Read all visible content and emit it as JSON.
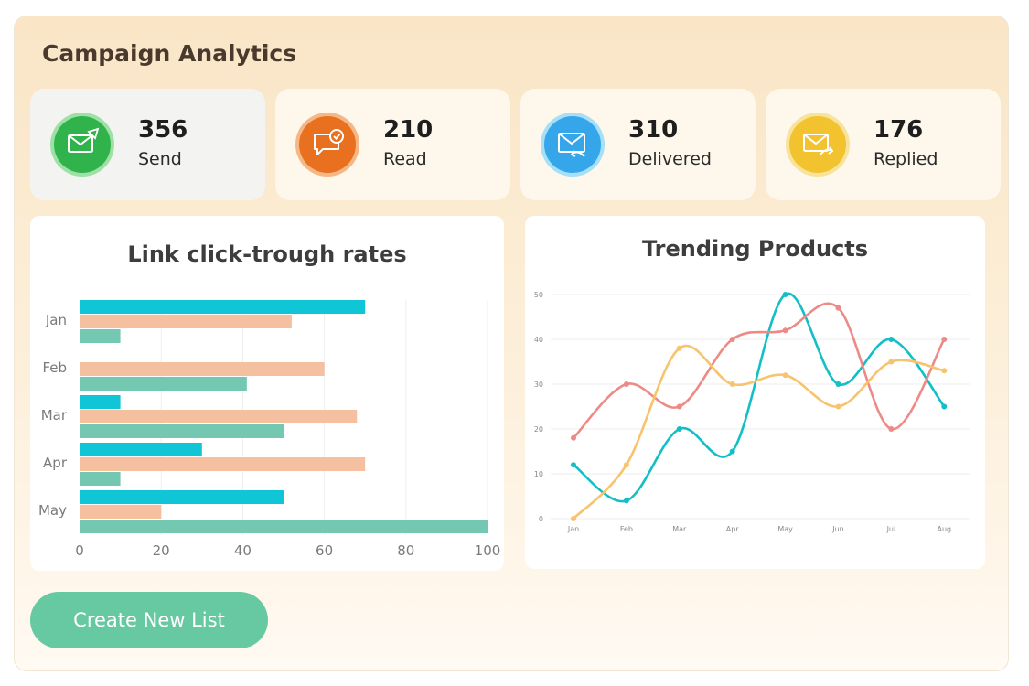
{
  "header": {
    "title": "Campaign Analytics"
  },
  "stats": [
    {
      "value": "356",
      "label": "Send",
      "icon": "send-mail-icon",
      "color": "#2fb34a"
    },
    {
      "value": "210",
      "label": "Read",
      "icon": "read-message-icon",
      "color": "#e9701f"
    },
    {
      "value": "310",
      "label": "Delivered",
      "icon": "delivered-mail-icon",
      "color": "#35a6ea"
    },
    {
      "value": "176",
      "label": "Replied",
      "icon": "replied-mail-icon",
      "color": "#f2c22f"
    }
  ],
  "charts": {
    "bar": {
      "title": "Link click-trough rates"
    },
    "line": {
      "title": "Trending Products"
    }
  },
  "chart_data": [
    {
      "type": "bar",
      "orientation": "horizontal",
      "title": "Link click-trough rates",
      "categories": [
        "Jan",
        "Feb",
        "Mar",
        "Apr",
        "May"
      ],
      "xlim": [
        0,
        100
      ],
      "xticks": [
        0,
        20,
        40,
        60,
        80,
        100
      ],
      "grid": true,
      "series": [
        {
          "color": "#0fc5d6",
          "values": [
            70,
            0,
            10,
            30,
            50
          ]
        },
        {
          "color": "#f5c0a0",
          "values": [
            52,
            60,
            68,
            70,
            20
          ]
        },
        {
          "color": "#74c8b2",
          "values": [
            10,
            41,
            50,
            10,
            100
          ]
        }
      ]
    },
    {
      "type": "line",
      "title": "Trending Products",
      "x": [
        "Jan",
        "Feb",
        "Mar",
        "Apr",
        "May",
        "Jun",
        "Jul",
        "Aug"
      ],
      "ylim": [
        0,
        50
      ],
      "yticks": [
        0,
        10,
        20,
        30,
        40,
        50
      ],
      "grid": true,
      "series": [
        {
          "color": "#13bfc7",
          "values": [
            12,
            4,
            20,
            15,
            50,
            30,
            40,
            25
          ]
        },
        {
          "color": "#ee8a86",
          "values": [
            18,
            30,
            25,
            40,
            42,
            47,
            20,
            40
          ]
        },
        {
          "color": "#f7c36c",
          "values": [
            0,
            12,
            38,
            30,
            32,
            25,
            35,
            33
          ]
        }
      ]
    }
  ],
  "actions": {
    "create_list_label": "Create New List"
  }
}
